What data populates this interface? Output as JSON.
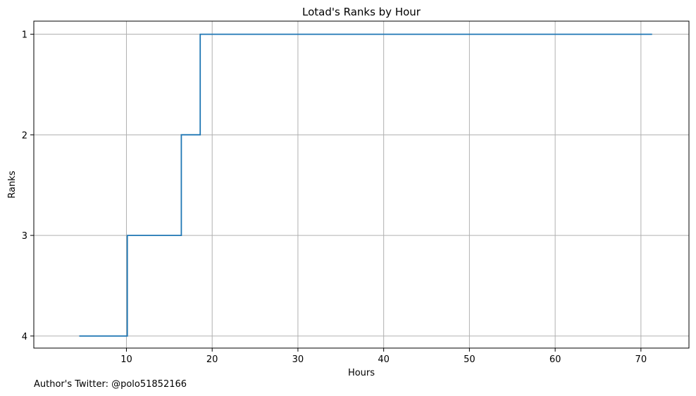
{
  "chart_data": {
    "type": "line",
    "title": "Lotad's Ranks by Hour",
    "xlabel": "Hours",
    "ylabel": "Ranks",
    "grid": true,
    "legend": "none",
    "xlim": [
      -0.8,
      75.6
    ],
    "ylim": [
      4.12,
      0.87
    ],
    "y_inverted": true,
    "line_style": "step",
    "x_ticks": [
      10,
      20,
      30,
      40,
      50,
      60,
      70
    ],
    "y_ticks": [
      1,
      2,
      3,
      4
    ],
    "colors": {
      "line": "#1f77b4",
      "grid": "#b0b0b0",
      "axes": "#000000"
    },
    "series": [
      {
        "points": [
          {
            "x": 4.5,
            "y": 4
          },
          {
            "x": 10.1,
            "y": 4
          },
          {
            "x": 10.1,
            "y": 3
          },
          {
            "x": 16.4,
            "y": 3
          },
          {
            "x": 16.4,
            "y": 2
          },
          {
            "x": 18.6,
            "y": 2
          },
          {
            "x": 18.6,
            "y": 1
          },
          {
            "x": 71.3,
            "y": 1
          }
        ]
      }
    ]
  },
  "footer": {
    "text": "Author's Twitter: @polo51852166"
  }
}
